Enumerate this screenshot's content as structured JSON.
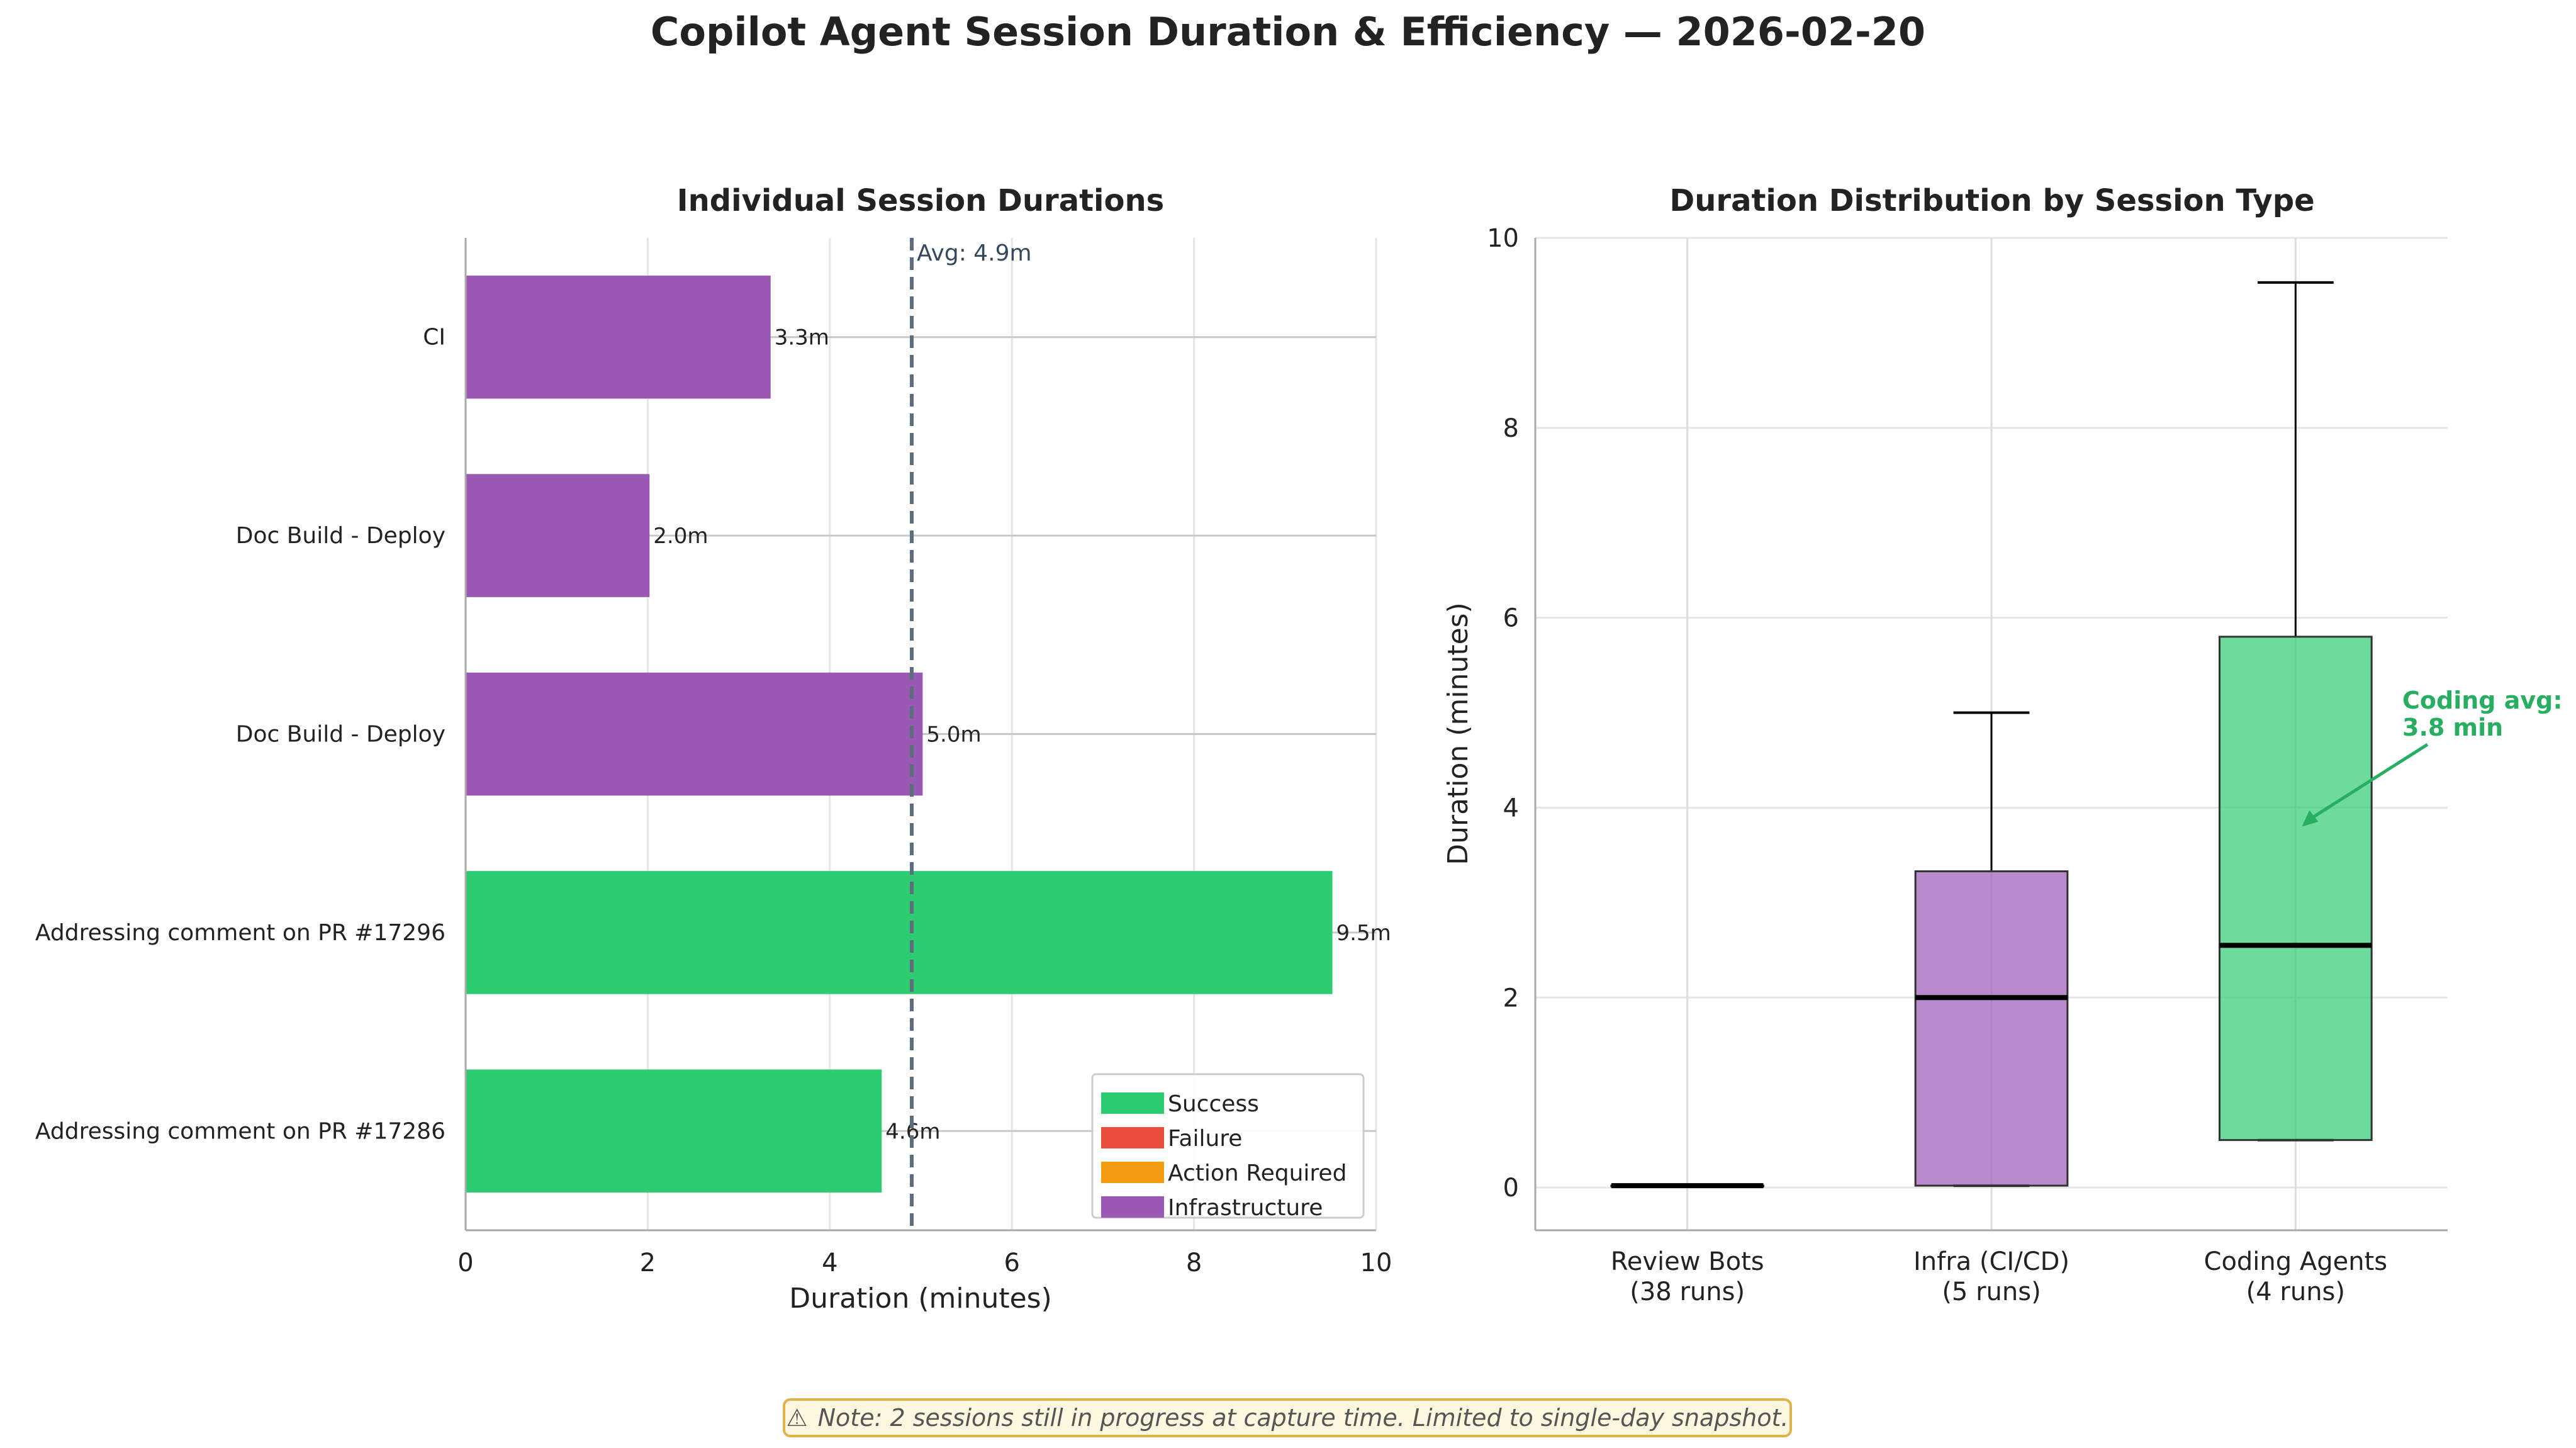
{
  "title": "Copilot Agent Session Duration & Efficiency — 2026-02-20",
  "colors": {
    "success": "#2ecc71",
    "failure": "#e74c3c",
    "action_required": "#f39c12",
    "infrastructure": "#9b59b6",
    "avg_line": "#5d6d7e",
    "annotation": "#27ae60"
  },
  "chart_data": [
    {
      "type": "bar",
      "orientation": "horizontal",
      "title": "Individual Session Durations",
      "xlabel": "Duration (minutes)",
      "ylabel": "",
      "xlim": [
        0,
        10
      ],
      "xticks": [
        "0",
        "2",
        "4",
        "6",
        "8",
        "10"
      ],
      "grid": true,
      "categories": [
        "CI",
        "Doc Build - Deploy",
        "Doc Build - Deploy",
        "Addressing comment on PR #17296",
        "Addressing comment on PR #17286"
      ],
      "values": [
        3.35,
        2.02,
        5.02,
        9.52,
        4.57
      ],
      "value_labels": [
        "3.3m",
        "2.0m",
        "5.0m",
        "9.5m",
        "4.6m"
      ],
      "bar_status": [
        "infrastructure",
        "infrastructure",
        "infrastructure",
        "success",
        "success"
      ],
      "average": 4.9,
      "average_label": "Avg: 4.9m",
      "legend": {
        "placement": "bottom-right",
        "entries": [
          {
            "label": "Success",
            "status": "success"
          },
          {
            "label": "Failure",
            "status": "failure"
          },
          {
            "label": "Action Required",
            "status": "action_required"
          },
          {
            "label": "Infrastructure",
            "status": "infrastructure"
          }
        ]
      }
    },
    {
      "type": "box",
      "title": "Duration Distribution by Session Type",
      "ylabel": "Duration (minutes)",
      "ylim": [
        -0.45,
        10
      ],
      "yticks": [
        "0",
        "2",
        "4",
        "6",
        "8",
        "10"
      ],
      "grid": true,
      "groups": [
        {
          "label_line1": "Review Bots",
          "label_line2": "(38 runs)",
          "color": "#2ecc71",
          "min": 0.02,
          "q1": 0.02,
          "median": 0.02,
          "q3": 0.02,
          "max": 0.02
        },
        {
          "label_line1": "Infra (CI/CD)",
          "label_line2": "(5 runs)",
          "color": "#9b59b6",
          "min": 0.02,
          "q1": 0.02,
          "median": 2.0,
          "q3": 3.33,
          "max": 5.0
        },
        {
          "label_line1": "Coding Agents",
          "label_line2": "(4 runs)",
          "color": "#2ecc71",
          "min": 0.5,
          "q1": 0.5,
          "median": 2.55,
          "q3": 5.8,
          "max": 9.53
        }
      ],
      "annotation": {
        "line1": "Coding avg:",
        "line2": "3.8 min",
        "value": 3.8
      }
    }
  ],
  "note": {
    "icon": "warning-icon",
    "symbol": "⚠",
    "text": "Note: 2 sessions still in progress at capture time. Limited to single-day snapshot."
  }
}
